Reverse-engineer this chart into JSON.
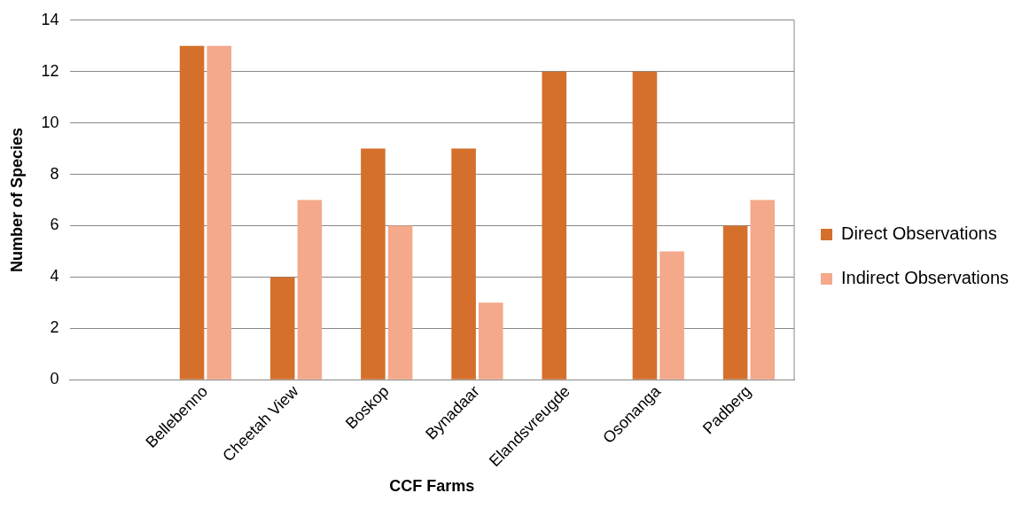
{
  "chart_data": {
    "type": "bar",
    "xlabel": "CCF Farms",
    "ylabel": "Number of Species",
    "categories": [
      null,
      "Bellebenno",
      "Cheetah View",
      "Boskop",
      "Bynadaar",
      "Elandsvreugde",
      "Osonanga",
      "Padberg"
    ],
    "series": [
      {
        "name": "Direct Observations",
        "color": "#d4702c",
        "values": [
          null,
          13,
          4,
          9,
          9,
          12,
          12,
          6
        ]
      },
      {
        "name": "Indirect Observations",
        "color": "#f3a98a",
        "values": [
          null,
          13,
          7,
          6,
          3,
          null,
          5,
          7
        ]
      }
    ],
    "ylim": [
      0,
      14
    ],
    "yticks": [
      0,
      2,
      4,
      6,
      8,
      10,
      12,
      14
    ],
    "grid": "y",
    "legend": "right"
  }
}
